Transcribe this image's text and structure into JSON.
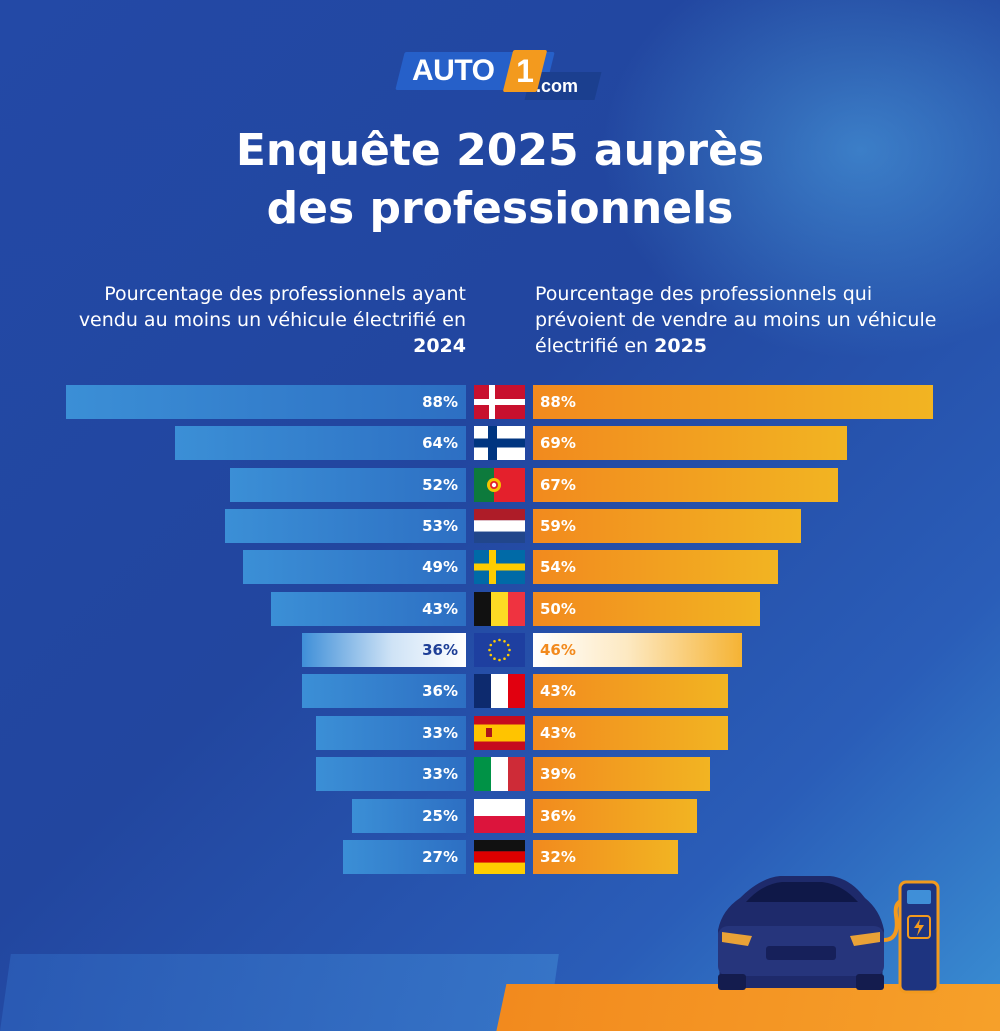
{
  "logo": {
    "main": "AUTO",
    "one": "1",
    "com": ".com"
  },
  "title": {
    "line1": "Enquête 2025 auprès",
    "line2": "des professionnels"
  },
  "header_left": {
    "text": "Pourcentage des professionnels ayant vendu au moins un véhicule électrifié en ",
    "year": "2024"
  },
  "header_right": {
    "text": "Pourcentage des professionnels qui prévoient de vendre au moins un véhicule électrifié en ",
    "year": "2025"
  },
  "colors": {
    "left_bar": "#3b8fd6",
    "right_bar": "#f28a1e",
    "highlight_text_left": "#1e3f97",
    "highlight_text_right": "#f28a1e"
  },
  "chart_data": {
    "type": "bar",
    "categories": [
      "denmark-flag",
      "finland-flag",
      "portugal-flag",
      "netherlands-flag",
      "sweden-flag",
      "belgium-flag",
      "eu-flag",
      "france-flag",
      "spain-flag",
      "italy-flag",
      "poland-flag",
      "germany-flag"
    ],
    "series": [
      {
        "name": "2024",
        "values": [
          88,
          64,
          52,
          53,
          49,
          43,
          36,
          36,
          33,
          33,
          25,
          27
        ],
        "labels": [
          "88%",
          "64%",
          "52%",
          "53%",
          "49%",
          "43%",
          "36%",
          "36%",
          "33%",
          "33%",
          "25%",
          "27%"
        ]
      },
      {
        "name": "2025",
        "values": [
          88,
          69,
          67,
          59,
          54,
          50,
          46,
          43,
          43,
          39,
          36,
          32
        ],
        "labels": [
          "88%",
          "69%",
          "67%",
          "59%",
          "54%",
          "50%",
          "46%",
          "43%",
          "43%",
          "39%",
          "36%",
          "32%"
        ]
      }
    ],
    "highlight_index": 6,
    "layout": "butterfly",
    "ylim": [
      0,
      88
    ]
  }
}
